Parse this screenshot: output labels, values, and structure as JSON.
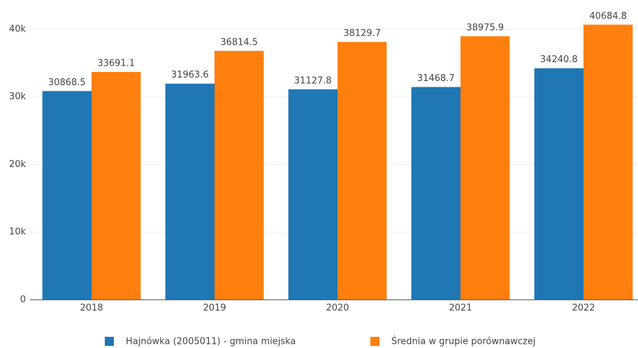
{
  "chart_data": {
    "type": "bar",
    "categories": [
      "2018",
      "2019",
      "2020",
      "2021",
      "2022"
    ],
    "series": [
      {
        "name": "Hajnówka (2005011) - gmina miejska",
        "color": "#1f77b4",
        "values": [
          30868.5,
          31963.6,
          31127.8,
          31468.7,
          34240.8
        ]
      },
      {
        "name": "Średnia w grupie porównawczej",
        "color": "#ff7f0e",
        "values": [
          33691.1,
          36814.5,
          38129.7,
          38975.9,
          40684.8
        ]
      }
    ],
    "ylim": [
      0,
      43300
    ],
    "yticks": [
      0,
      {
        "value": 10000,
        "label": "10k"
      },
      {
        "value": 20000,
        "label": "20k"
      },
      {
        "value": 30000,
        "label": "30k"
      },
      {
        "value": 40000,
        "label": "40k"
      }
    ],
    "grid": true,
    "legend": "bottom"
  }
}
